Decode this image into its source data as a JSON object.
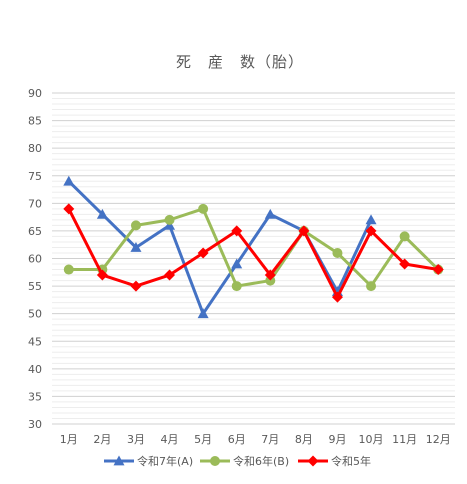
{
  "chart_data": {
    "type": "line",
    "title": "死　産　数（胎）",
    "categories": [
      "1月",
      "2月",
      "3月",
      "4月",
      "5月",
      "6月",
      "7月",
      "8月",
      "9月",
      "10月",
      "11月",
      "12月"
    ],
    "ylim": [
      30,
      90
    ],
    "ytick_step": 5,
    "ytick_labels": [
      "30",
      "35",
      "40",
      "45",
      "50",
      "55",
      "60",
      "65",
      "70",
      "75",
      "80",
      "85",
      "90"
    ],
    "minor_grid_step": 1,
    "grid": true,
    "legend_position": "bottom",
    "series": [
      {
        "name": "令和7年(A)",
        "color": "#4472C4",
        "marker": "triangle",
        "values": [
          74,
          68,
          62,
          66,
          50,
          59,
          68,
          65,
          54,
          67,
          null,
          null
        ]
      },
      {
        "name": "令和6年(B)",
        "color": "#9BBB59",
        "marker": "circle",
        "values": [
          58,
          58,
          66,
          67,
          69,
          55,
          56,
          65,
          61,
          55,
          64,
          58
        ]
      },
      {
        "name": "令和5年",
        "color": "#FF0000",
        "marker": "diamond",
        "values": [
          69,
          57,
          55,
          57,
          61,
          65,
          57,
          65,
          53,
          65,
          59,
          58
        ]
      }
    ]
  }
}
